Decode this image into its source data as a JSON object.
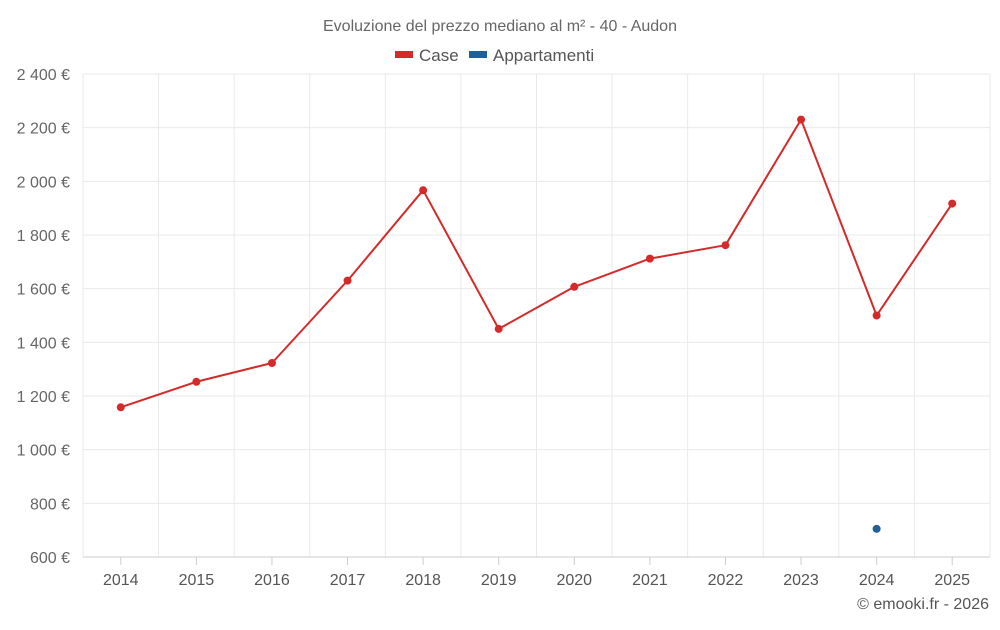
{
  "chart_data": {
    "type": "line",
    "title": "Evoluzione del prezzo mediano al m² - 40 - Audon",
    "categories": [
      "2014",
      "2015",
      "2016",
      "2017",
      "2018",
      "2019",
      "2020",
      "2021",
      "2022",
      "2023",
      "2024",
      "2025"
    ],
    "series": [
      {
        "name": "Case",
        "color": "#d42a2a",
        "values": [
          1158,
          1253,
          1323,
          1630,
          1967,
          1450,
          1607,
          1712,
          1762,
          2230,
          1500,
          1917
        ]
      },
      {
        "name": "Appartamenti",
        "color": "#1f5f9a",
        "values": [
          null,
          null,
          null,
          null,
          null,
          null,
          null,
          null,
          null,
          null,
          705,
          null
        ]
      }
    ],
    "ylim": [
      600,
      2400
    ],
    "yticks": [
      600,
      800,
      1000,
      1200,
      1400,
      1600,
      1800,
      2000,
      2200,
      2400
    ],
    "ytick_labels": [
      "600 €",
      "800 €",
      "1 000 €",
      "1 200 €",
      "1 400 €",
      "1 600 €",
      "1 800 €",
      "2 000 €",
      "2 200 €",
      "2 400 €"
    ],
    "xlabel": "",
    "ylabel": "",
    "grid": true,
    "legend_position": "top-center"
  },
  "credit": "© emooki.fr - 2026"
}
